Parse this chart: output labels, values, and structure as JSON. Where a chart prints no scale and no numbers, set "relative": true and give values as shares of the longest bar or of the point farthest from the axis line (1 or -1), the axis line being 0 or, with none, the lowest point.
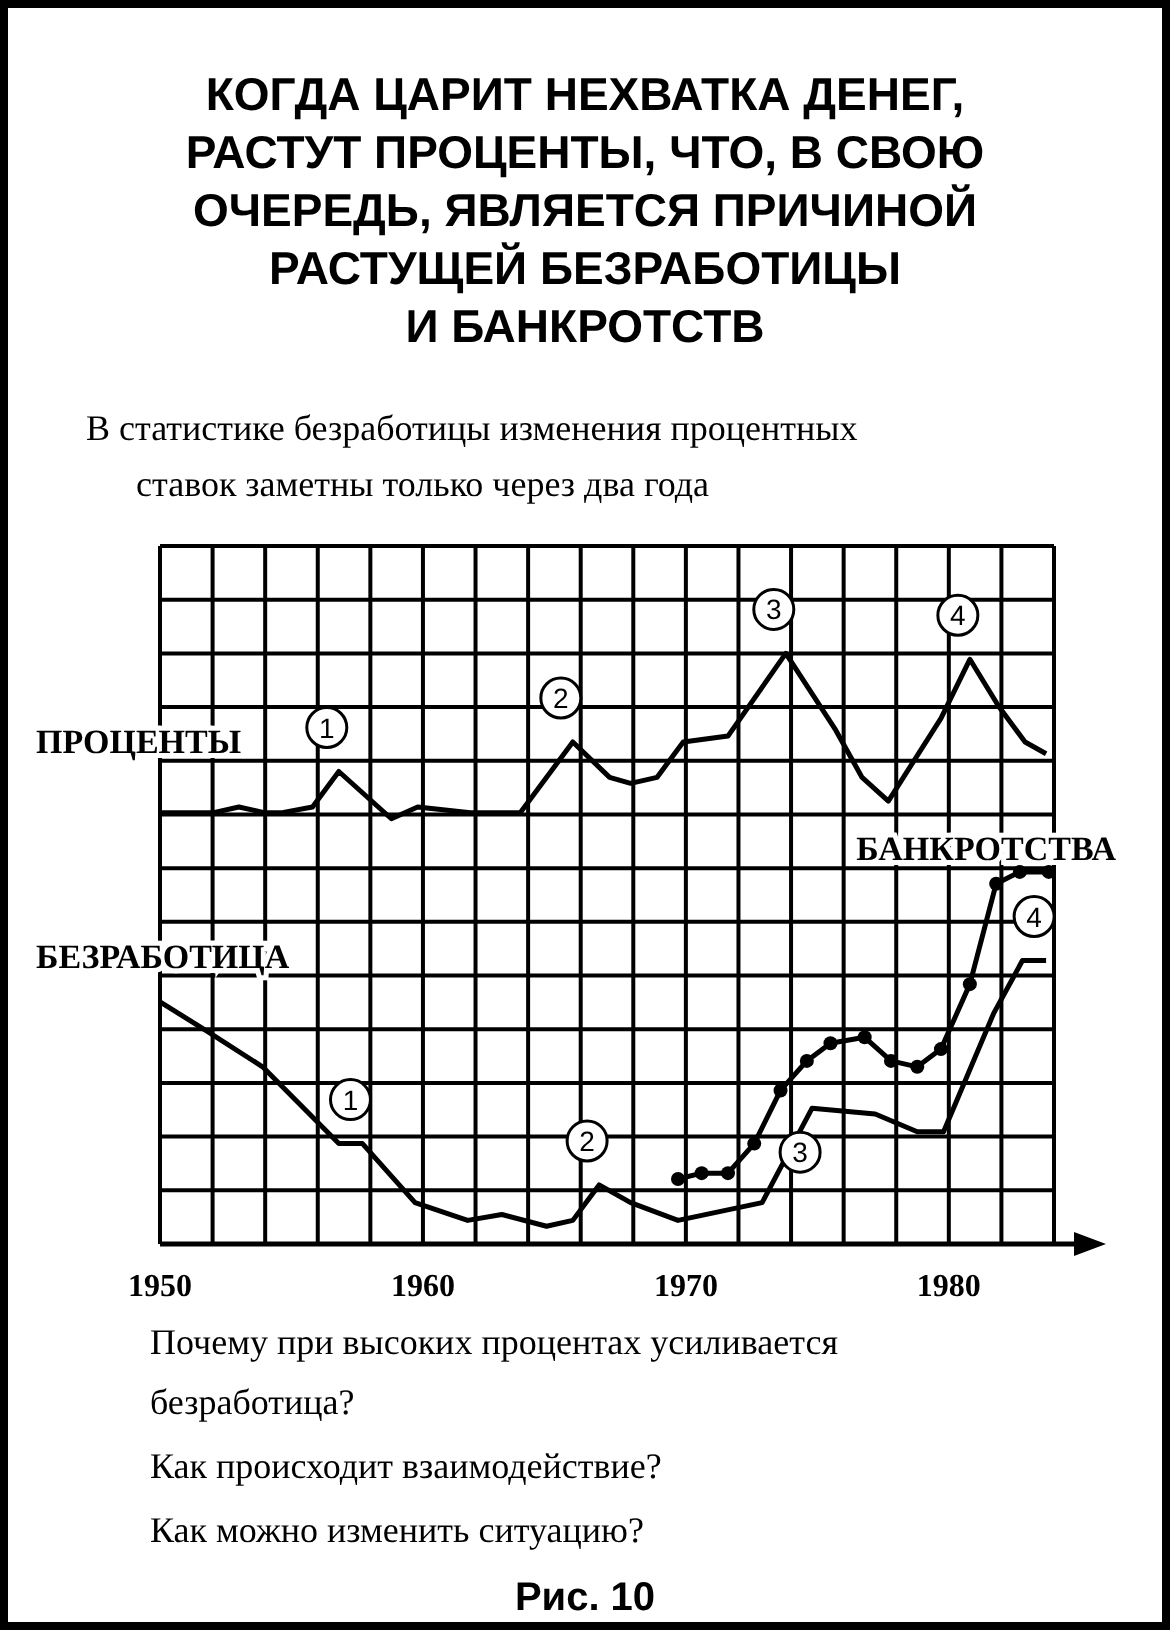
{
  "chart_data": {
    "type": "line",
    "title": "КОГДА ЦАРИТ НЕХВАТКА ДЕНЕГ,\nРАСТУТ ПРОЦЕНТЫ, ЧТО, В СВОЮ\nОЧЕРЕДЬ, ЯВЛЯЕТСЯ ПРИЧИНОЙ\nРАСТУЩЕЙ БЕЗРАБОТИЦЫ\nИ БАНКРОТСТВ",
    "subtitle": "В статистике безработицы изменения процентных\nставок заметны только через два года",
    "relative": true,
    "grid": true,
    "line_style": "solid",
    "xlim": [
      1950,
      1984
    ],
    "xticks": [
      1950,
      {
        "value": 1952,
        "label": null
      },
      {
        "value": 1954,
        "label": null
      },
      {
        "value": 1956,
        "label": null
      },
      {
        "value": 1958,
        "label": null
      },
      1960,
      {
        "value": 1962,
        "label": null
      },
      {
        "value": 1964,
        "label": null
      },
      {
        "value": 1966,
        "label": null
      },
      {
        "value": 1968,
        "label": null
      },
      1970,
      {
        "value": 1972,
        "label": null
      },
      {
        "value": 1974,
        "label": null
      },
      {
        "value": 1976,
        "label": null
      },
      {
        "value": 1978,
        "label": null
      },
      1980,
      {
        "value": 1982,
        "label": null
      },
      {
        "value": 1984,
        "label": null
      }
    ],
    "series": [
      {
        "name": "ПРОЦЕНТЫ",
        "color": "#000000",
        "marker": "none",
        "x": [
          1950,
          1952,
          1953,
          1954,
          1954.6,
          1955.8,
          1956.8,
          1958.8,
          1959.8,
          1961.8,
          1963.7,
          1965.7,
          1967.1,
          1967.9,
          1968.9,
          1969.9,
          1971.6,
          1973.8,
          1975.7,
          1976.7,
          1977.7,
          1979.7,
          1980.8,
          1981.9,
          1982.9,
          1983.7
        ],
        "values": [
          0.73,
          0.73,
          0.74,
          0.73,
          0.73,
          0.74,
          0.8,
          0.72,
          0.74,
          0.73,
          0.73,
          0.85,
          0.79,
          0.78,
          0.79,
          0.85,
          0.86,
          1,
          0.87,
          0.79,
          0.75,
          0.89,
          0.99,
          0.91,
          0.85,
          0.83
        ]
      },
      {
        "name": "БЕЗРАБОТИЦА",
        "color": "#000000",
        "marker": "none",
        "x": [
          1950,
          1951.8,
          1953.9,
          1956.8,
          1957.7,
          1959.7,
          1961.7,
          1963,
          1964.7,
          1965.7,
          1966.7,
          1967.9,
          1969.7,
          1972.9,
          1974.8,
          1977.2,
          1978.8,
          1979.8,
          1981.7,
          1982.8,
          1983.7
        ],
        "values": [
          0.41,
          0.36,
          0.3,
          0.17,
          0.17,
          0.07,
          0.04,
          0.05,
          0.03,
          0.04,
          0.1,
          0.07,
          0.04,
          0.07,
          0.23,
          0.22,
          0.19,
          0.19,
          0.39,
          0.48,
          0.48
        ]
      },
      {
        "name": "БАНКРОТСТВА",
        "color": "#000000",
        "marker": "circle",
        "x": [
          1969.7,
          1970.6,
          1971.6,
          1972.6,
          1973.6,
          1974.6,
          1975.5,
          1976.8,
          1977.8,
          1978.8,
          1979.7,
          1980.8,
          1981.8,
          1982.7,
          1983.8
        ],
        "values": [
          0.11,
          0.12,
          0.12,
          0.17,
          0.26,
          0.31,
          0.34,
          0.35,
          0.31,
          0.3,
          0.33,
          0.44,
          0.61,
          0.63,
          0.63
        ]
      }
    ],
    "annotations": [
      {
        "text": "1",
        "x": 1956.8,
        "y": 0.8
      },
      {
        "text": "2",
        "x": 1965.7,
        "y": 0.85
      },
      {
        "text": "3",
        "x": 1973.8,
        "y": 1
      },
      {
        "text": "4",
        "x": 1980.8,
        "y": 0.99
      },
      {
        "text": "1",
        "x": 1957.7,
        "y": 0.17
      },
      {
        "text": "2",
        "x": 1966.7,
        "y": 0.1
      },
      {
        "text": "3",
        "x": 1974.8,
        "y": 0.23
      },
      {
        "text": "4",
        "x": 1983.7,
        "y": 0.48
      },
      "Почему при высоких процентах усиливается\nбезработица?",
      "Как происходит взаимодействие?",
      "Как можно изменить ситуацию?",
      "Рис. 10"
    ]
  }
}
